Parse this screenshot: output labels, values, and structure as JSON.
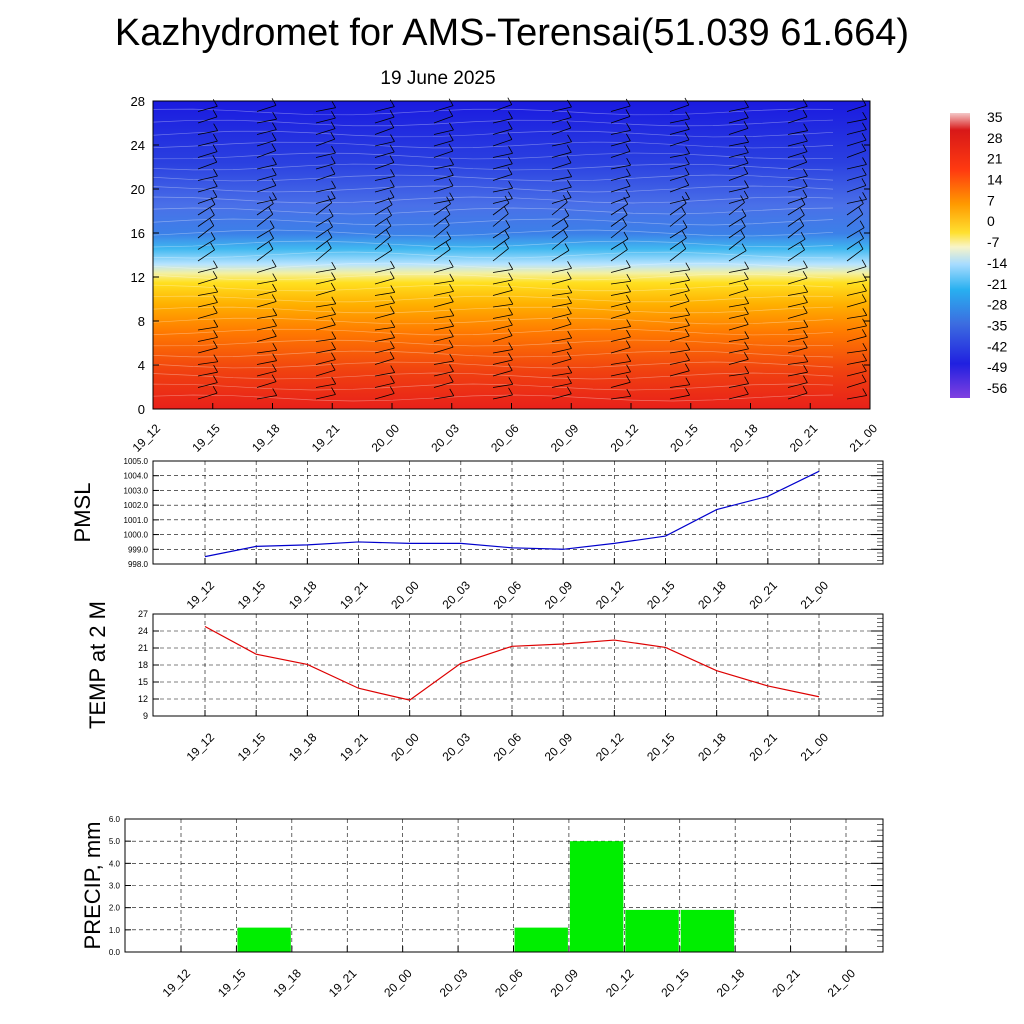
{
  "title": "Kazhydromet for AMS-Terensai(51.039 61.664)",
  "subtitle": "19 June 2025",
  "time_labels": [
    "19_12",
    "19_15",
    "19_18",
    "19_21",
    "20_00",
    "20_03",
    "20_06",
    "20_09",
    "20_12",
    "20_15",
    "20_18",
    "20_21",
    "21_00"
  ],
  "chart_data": [
    {
      "type": "heatmap",
      "description_role": "cross-section temperature with wind barbs",
      "x": [
        "19_12",
        "19_15",
        "19_18",
        "19_21",
        "20_00",
        "20_03",
        "20_06",
        "20_09",
        "20_12",
        "20_15",
        "20_18",
        "20_21",
        "21_00"
      ],
      "y_ticks": [
        "0",
        "4",
        "8",
        "12",
        "16",
        "20",
        "24",
        "28"
      ],
      "ylim": [
        0,
        28
      ],
      "colorbar_labels": [
        "35",
        "28",
        "21",
        "14",
        "7",
        "0",
        "-7",
        "-14",
        "-21",
        "-28",
        "-35",
        "-42",
        "-49",
        "-56"
      ],
      "colorbar_range": [
        -56,
        35
      ],
      "colors": {
        "hot": "#e8201a",
        "warm": "#ff8c00",
        "mild": "#ffe020",
        "cool": "#9fd8ff",
        "cold": "#2a4fe0",
        "coldest": "#1a1ae0"
      }
    },
    {
      "type": "line",
      "ylabel": "PMSL",
      "categories": [
        "19_12",
        "19_15",
        "19_18",
        "19_21",
        "20_00",
        "20_03",
        "20_06",
        "20_09",
        "20_12",
        "20_15",
        "20_18",
        "20_21",
        "21_00"
      ],
      "values": [
        998.5,
        999.2,
        999.3,
        999.5,
        999.4,
        999.4,
        999.1,
        999.0,
        999.4,
        999.9,
        1001.7,
        1002.6,
        1004.3
      ],
      "ylim": [
        998.0,
        1005.0
      ],
      "y_ticks": [
        "998.0",
        "999.0",
        "1000.0",
        "1001.0",
        "1002.0",
        "1003.0",
        "1004.0",
        "1005.0"
      ],
      "color": "#0000cc",
      "grid": true
    },
    {
      "type": "line",
      "ylabel": "TEMP at 2 M",
      "categories": [
        "19_12",
        "19_15",
        "19_18",
        "19_21",
        "20_00",
        "20_03",
        "20_06",
        "20_09",
        "20_12",
        "20_15",
        "20_18",
        "20_21",
        "21_00"
      ],
      "values": [
        24.8,
        19.9,
        18.1,
        13.9,
        11.8,
        18.3,
        21.3,
        21.7,
        22.4,
        21.1,
        17.0,
        14.3,
        12.4
      ],
      "ylim": [
        9,
        27
      ],
      "y_ticks": [
        "9",
        "12",
        "15",
        "18",
        "21",
        "24",
        "27"
      ],
      "color": "#dd0000",
      "grid": true
    },
    {
      "type": "bar",
      "ylabel": "PRECIP, mm",
      "categories": [
        "19_12",
        "19_15",
        "19_18",
        "19_21",
        "20_00",
        "20_03",
        "20_06",
        "20_09",
        "20_12",
        "20_15",
        "20_18",
        "20_21",
        "21_00"
      ],
      "values": [
        0,
        1.1,
        0,
        0,
        0,
        0,
        1.1,
        5.0,
        1.9,
        1.9,
        0,
        0,
        0
      ],
      "ylim": [
        0,
        6.0
      ],
      "y_ticks": [
        "0.0",
        "1.0",
        "2.0",
        "3.0",
        "4.0",
        "5.0",
        "6.0"
      ],
      "color": "#00ee00",
      "grid": true
    }
  ]
}
